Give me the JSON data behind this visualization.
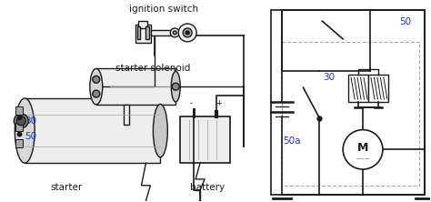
{
  "bg_color": "#ffffff",
  "line_color": "#1a1a1a",
  "label_color": "#1a35cc",
  "dash_color": "#aaaaaa",
  "gray_fill": "#d8d8d8",
  "light_gray": "#eeeeee",
  "left_labels": {
    "ignition_switch": "ignition switch",
    "starter_solenoid": "starter solenoid",
    "starter": "starter",
    "battery": "battery",
    "num_30": "30",
    "num_50": "50"
  },
  "right_labels": {
    "num_50": "50",
    "num_30": "30",
    "num_50a": "50a",
    "M": "M"
  }
}
